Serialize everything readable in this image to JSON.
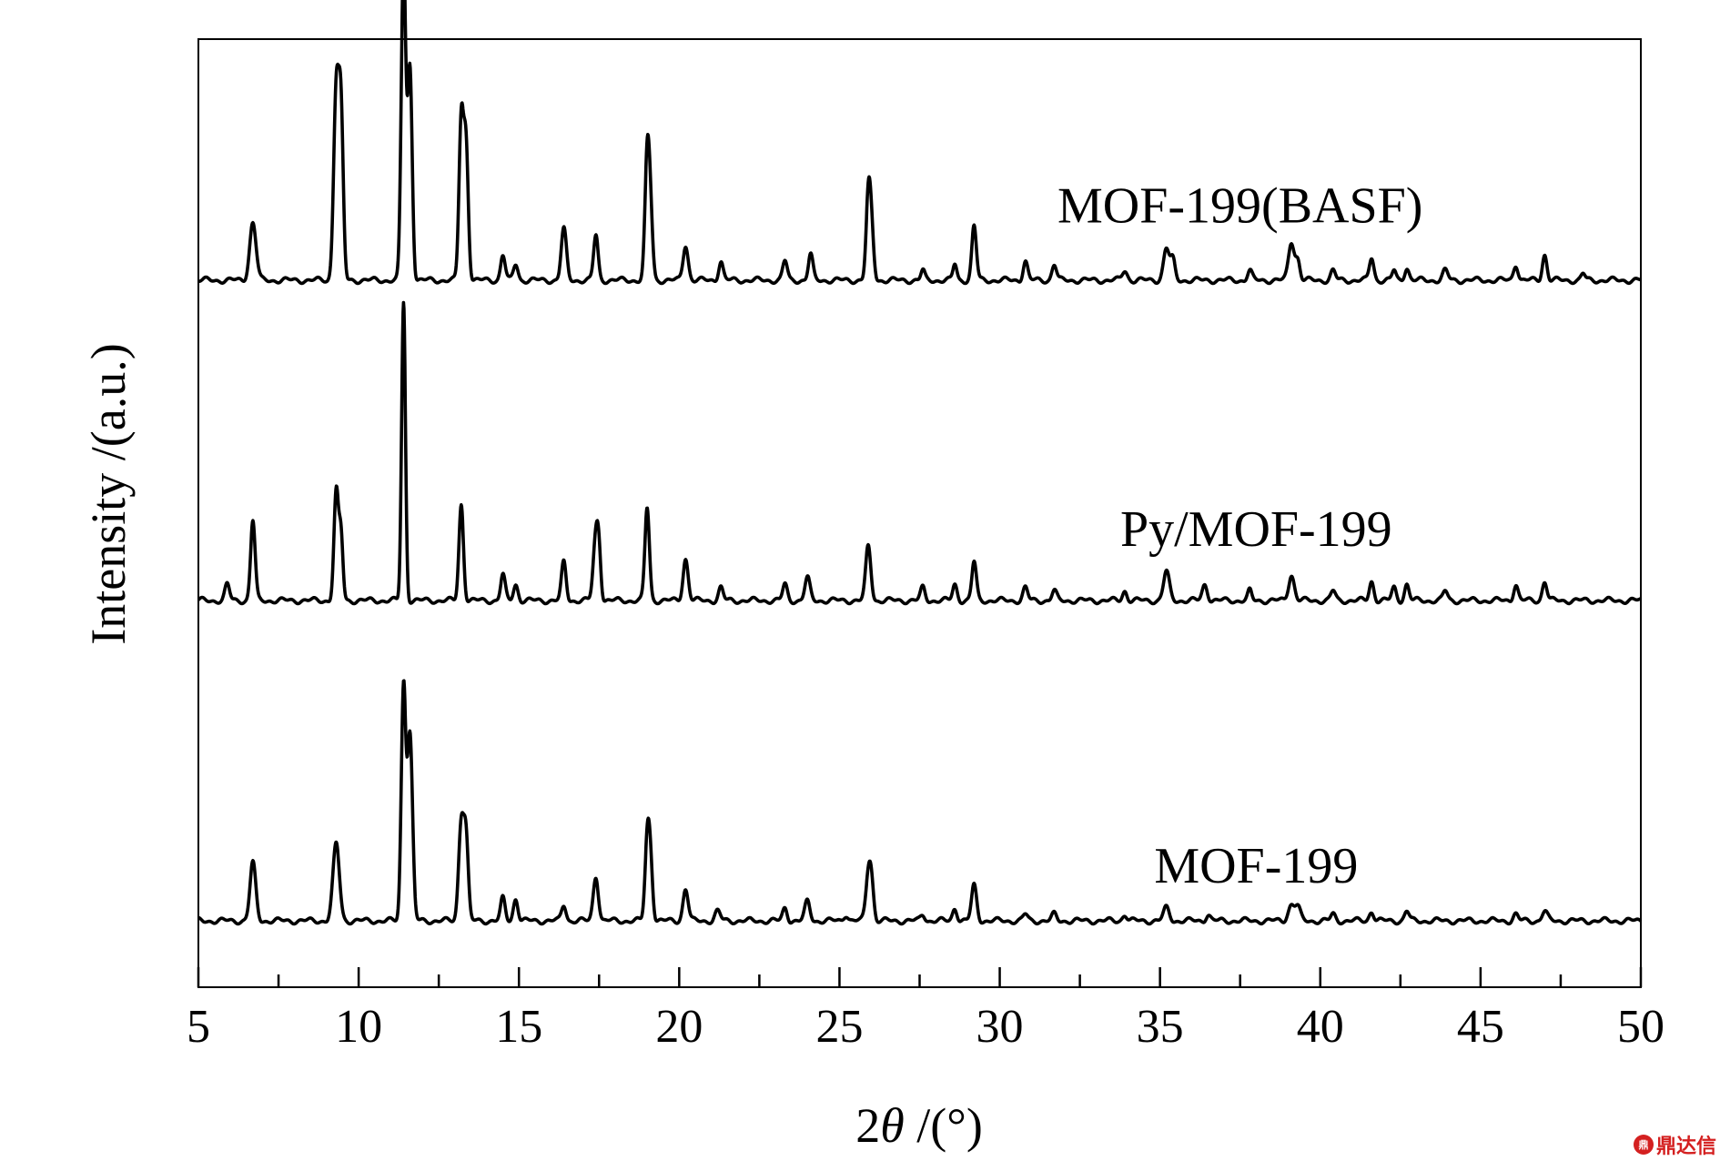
{
  "chart_data": {
    "type": "line",
    "xlabel_prefix": "2",
    "xlabel_symbol": "θ",
    "xlabel_suffix": " /(°)",
    "ylabel": "Intensity /(a.u.)",
    "xlim": [
      5,
      50
    ],
    "xticks": [
      5,
      10,
      15,
      20,
      25,
      30,
      35,
      40,
      45,
      50
    ],
    "minor_xticks": [
      7.5,
      12.5,
      17.5,
      22.5,
      27.5,
      32.5,
      37.5,
      42.5,
      47.5
    ],
    "y_tick_labels": false,
    "grid": false,
    "legend": "none",
    "series": [
      {
        "name": "MOF-199(BASF)",
        "baseline": 2.0,
        "peaks": [
          [
            6.7,
            0.18,
            0.1
          ],
          [
            9.3,
            0.6,
            0.08
          ],
          [
            9.45,
            0.5,
            0.07
          ],
          [
            11.4,
            1.0,
            0.07
          ],
          [
            11.6,
            0.66,
            0.07
          ],
          [
            13.2,
            0.5,
            0.07
          ],
          [
            13.35,
            0.42,
            0.07
          ],
          [
            14.5,
            0.08,
            0.07
          ],
          [
            14.9,
            0.05,
            0.07
          ],
          [
            16.4,
            0.16,
            0.08
          ],
          [
            17.4,
            0.14,
            0.07
          ],
          [
            19.0,
            0.36,
            0.07
          ],
          [
            19.1,
            0.2,
            0.07
          ],
          [
            20.2,
            0.11,
            0.08
          ],
          [
            21.3,
            0.06,
            0.07
          ],
          [
            23.3,
            0.06,
            0.07
          ],
          [
            24.1,
            0.08,
            0.07
          ],
          [
            25.9,
            0.25,
            0.07
          ],
          [
            26.0,
            0.14,
            0.07
          ],
          [
            27.6,
            0.03,
            0.06
          ],
          [
            28.6,
            0.05,
            0.06
          ],
          [
            29.2,
            0.17,
            0.07
          ],
          [
            30.8,
            0.06,
            0.07
          ],
          [
            31.7,
            0.05,
            0.07
          ],
          [
            33.9,
            0.03,
            0.08
          ],
          [
            35.2,
            0.1,
            0.09
          ],
          [
            35.4,
            0.06,
            0.07
          ],
          [
            37.8,
            0.03,
            0.07
          ],
          [
            39.1,
            0.12,
            0.09
          ],
          [
            39.3,
            0.06,
            0.07
          ],
          [
            40.4,
            0.03,
            0.07
          ],
          [
            41.6,
            0.07,
            0.07
          ],
          [
            42.3,
            0.03,
            0.06
          ],
          [
            42.7,
            0.04,
            0.07
          ],
          [
            43.9,
            0.03,
            0.08
          ],
          [
            46.1,
            0.05,
            0.07
          ],
          [
            47.0,
            0.08,
            0.07
          ],
          [
            48.2,
            0.02,
            0.06
          ]
        ]
      },
      {
        "name": "Py/MOF-199",
        "baseline": 1.0,
        "peaks": [
          [
            5.9,
            0.05,
            0.07
          ],
          [
            6.7,
            0.25,
            0.07
          ],
          [
            9.3,
            0.34,
            0.07
          ],
          [
            9.45,
            0.2,
            0.06
          ],
          [
            11.4,
            0.93,
            0.06
          ],
          [
            13.2,
            0.3,
            0.07
          ],
          [
            14.5,
            0.08,
            0.07
          ],
          [
            14.9,
            0.05,
            0.07
          ],
          [
            16.4,
            0.12,
            0.07
          ],
          [
            17.4,
            0.2,
            0.08
          ],
          [
            17.5,
            0.12,
            0.06
          ],
          [
            19.0,
            0.29,
            0.07
          ],
          [
            20.2,
            0.13,
            0.08
          ],
          [
            21.3,
            0.04,
            0.07
          ],
          [
            23.3,
            0.05,
            0.07
          ],
          [
            24.0,
            0.07,
            0.08
          ],
          [
            25.9,
            0.17,
            0.08
          ],
          [
            27.6,
            0.04,
            0.07
          ],
          [
            28.6,
            0.05,
            0.07
          ],
          [
            29.2,
            0.12,
            0.07
          ],
          [
            30.8,
            0.04,
            0.07
          ],
          [
            31.7,
            0.03,
            0.07
          ],
          [
            33.9,
            0.03,
            0.07
          ],
          [
            35.2,
            0.09,
            0.09
          ],
          [
            36.4,
            0.05,
            0.08
          ],
          [
            37.8,
            0.03,
            0.06
          ],
          [
            39.1,
            0.08,
            0.09
          ],
          [
            40.4,
            0.03,
            0.07
          ],
          [
            41.6,
            0.06,
            0.07
          ],
          [
            42.3,
            0.04,
            0.07
          ],
          [
            42.7,
            0.05,
            0.07
          ],
          [
            43.9,
            0.03,
            0.07
          ],
          [
            46.1,
            0.05,
            0.07
          ],
          [
            47.0,
            0.06,
            0.07
          ]
        ]
      },
      {
        "name": "MOF-199",
        "baseline": 0.0,
        "peaks": [
          [
            6.7,
            0.18,
            0.09
          ],
          [
            9.3,
            0.24,
            0.1
          ],
          [
            11.4,
            0.73,
            0.07
          ],
          [
            11.6,
            0.58,
            0.08
          ],
          [
            13.2,
            0.31,
            0.08
          ],
          [
            13.35,
            0.25,
            0.07
          ],
          [
            14.5,
            0.07,
            0.07
          ],
          [
            14.9,
            0.07,
            0.07
          ],
          [
            16.4,
            0.05,
            0.07
          ],
          [
            17.4,
            0.14,
            0.08
          ],
          [
            19.0,
            0.23,
            0.07
          ],
          [
            19.1,
            0.18,
            0.07
          ],
          [
            20.2,
            0.1,
            0.08
          ],
          [
            21.2,
            0.03,
            0.08
          ],
          [
            23.3,
            0.04,
            0.07
          ],
          [
            24.0,
            0.06,
            0.08
          ],
          [
            25.2,
            0.02,
            0.07
          ],
          [
            25.9,
            0.14,
            0.08
          ],
          [
            26.0,
            0.1,
            0.07
          ],
          [
            27.6,
            0.02,
            0.07
          ],
          [
            28.6,
            0.04,
            0.07
          ],
          [
            29.2,
            0.11,
            0.08
          ],
          [
            30.8,
            0.02,
            0.07
          ],
          [
            31.7,
            0.02,
            0.07
          ],
          [
            33.9,
            0.02,
            0.07
          ],
          [
            35.2,
            0.04,
            0.09
          ],
          [
            36.5,
            0.02,
            0.07
          ],
          [
            39.1,
            0.05,
            0.1
          ],
          [
            39.3,
            0.04,
            0.08
          ],
          [
            40.4,
            0.02,
            0.07
          ],
          [
            41.6,
            0.03,
            0.07
          ],
          [
            42.7,
            0.03,
            0.07
          ],
          [
            46.1,
            0.02,
            0.07
          ],
          [
            47.0,
            0.03,
            0.08
          ]
        ]
      }
    ]
  },
  "watermark": {
    "logo": "鼎",
    "text": "鼎达信"
  }
}
